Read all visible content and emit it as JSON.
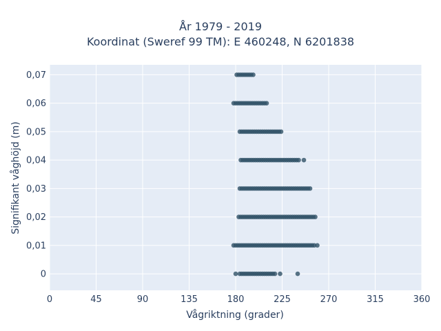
{
  "chart_data": {
    "type": "scatter",
    "title": "År 1979 - 2019",
    "subtitle": "Koordinat (Sweref 99 TM): E 460248, N 6201838",
    "xlabel": "Vågriktning (grader)",
    "ylabel": "Signifikant våghöjd (m)",
    "xlim": [
      0,
      360
    ],
    "ylim": [
      -0.0058,
      0.0735
    ],
    "x_ticks": [
      "0",
      "45",
      "90",
      "135",
      "180",
      "225",
      "270",
      "315",
      "360"
    ],
    "x_tick_values": [
      0,
      45,
      90,
      135,
      180,
      225,
      270,
      315,
      360
    ],
    "y_ticks": [
      "0",
      "0,01",
      "0,02",
      "0,03",
      "0,04",
      "0,05",
      "0,06",
      "0,07"
    ],
    "y_tick_values": [
      0,
      0.01,
      0.02,
      0.03,
      0.04,
      0.05,
      0.06,
      0.07
    ],
    "grid": true,
    "legend": "none",
    "colors": {
      "marker": "#2f5166",
      "plot_bg": "#e5ecf6",
      "grid": "#ffffff",
      "text": "#2a3f5f"
    },
    "series": [
      {
        "points": [
          {
            "x": 180,
            "y": 0
          },
          {
            "x": 184,
            "y": 0
          },
          {
            "x": 186,
            "y": 0
          },
          {
            "x": 188,
            "y": 0
          },
          {
            "x": 190,
            "y": 0
          },
          {
            "x": 192,
            "y": 0
          },
          {
            "x": 194,
            "y": 0
          },
          {
            "x": 196,
            "y": 0
          },
          {
            "x": 198,
            "y": 0
          },
          {
            "x": 200,
            "y": 0
          },
          {
            "x": 202,
            "y": 0
          },
          {
            "x": 204,
            "y": 0
          },
          {
            "x": 206,
            "y": 0
          },
          {
            "x": 208,
            "y": 0
          },
          {
            "x": 210,
            "y": 0
          },
          {
            "x": 212,
            "y": 0
          },
          {
            "x": 214,
            "y": 0
          },
          {
            "x": 216,
            "y": 0
          },
          {
            "x": 218,
            "y": 0
          },
          {
            "x": 223,
            "y": 0
          },
          {
            "x": 240,
            "y": 0
          },
          {
            "x": 178,
            "y": 0.01
          },
          {
            "x": 180,
            "y": 0.01
          },
          {
            "x": 182,
            "y": 0.01
          },
          {
            "x": 184,
            "y": 0.01
          },
          {
            "x": 186,
            "y": 0.01
          },
          {
            "x": 188,
            "y": 0.01
          },
          {
            "x": 190,
            "y": 0.01
          },
          {
            "x": 192,
            "y": 0.01
          },
          {
            "x": 194,
            "y": 0.01
          },
          {
            "x": 196,
            "y": 0.01
          },
          {
            "x": 198,
            "y": 0.01
          },
          {
            "x": 200,
            "y": 0.01
          },
          {
            "x": 202,
            "y": 0.01
          },
          {
            "x": 204,
            "y": 0.01
          },
          {
            "x": 206,
            "y": 0.01
          },
          {
            "x": 208,
            "y": 0.01
          },
          {
            "x": 210,
            "y": 0.01
          },
          {
            "x": 212,
            "y": 0.01
          },
          {
            "x": 214,
            "y": 0.01
          },
          {
            "x": 216,
            "y": 0.01
          },
          {
            "x": 218,
            "y": 0.01
          },
          {
            "x": 220,
            "y": 0.01
          },
          {
            "x": 222,
            "y": 0.01
          },
          {
            "x": 224,
            "y": 0.01
          },
          {
            "x": 226,
            "y": 0.01
          },
          {
            "x": 228,
            "y": 0.01
          },
          {
            "x": 230,
            "y": 0.01
          },
          {
            "x": 232,
            "y": 0.01
          },
          {
            "x": 234,
            "y": 0.01
          },
          {
            "x": 236,
            "y": 0.01
          },
          {
            "x": 238,
            "y": 0.01
          },
          {
            "x": 240,
            "y": 0.01
          },
          {
            "x": 242,
            "y": 0.01
          },
          {
            "x": 244,
            "y": 0.01
          },
          {
            "x": 246,
            "y": 0.01
          },
          {
            "x": 248,
            "y": 0.01
          },
          {
            "x": 250,
            "y": 0.01
          },
          {
            "x": 252,
            "y": 0.01
          },
          {
            "x": 254,
            "y": 0.01
          },
          {
            "x": 256,
            "y": 0.01
          },
          {
            "x": 259,
            "y": 0.01
          },
          {
            "x": 183,
            "y": 0.02
          },
          {
            "x": 185,
            "y": 0.02
          },
          {
            "x": 187,
            "y": 0.02
          },
          {
            "x": 189,
            "y": 0.02
          },
          {
            "x": 191,
            "y": 0.02
          },
          {
            "x": 193,
            "y": 0.02
          },
          {
            "x": 195,
            "y": 0.02
          },
          {
            "x": 197,
            "y": 0.02
          },
          {
            "x": 199,
            "y": 0.02
          },
          {
            "x": 201,
            "y": 0.02
          },
          {
            "x": 203,
            "y": 0.02
          },
          {
            "x": 205,
            "y": 0.02
          },
          {
            "x": 207,
            "y": 0.02
          },
          {
            "x": 209,
            "y": 0.02
          },
          {
            "x": 211,
            "y": 0.02
          },
          {
            "x": 213,
            "y": 0.02
          },
          {
            "x": 215,
            "y": 0.02
          },
          {
            "x": 217,
            "y": 0.02
          },
          {
            "x": 219,
            "y": 0.02
          },
          {
            "x": 221,
            "y": 0.02
          },
          {
            "x": 223,
            "y": 0.02
          },
          {
            "x": 225,
            "y": 0.02
          },
          {
            "x": 227,
            "y": 0.02
          },
          {
            "x": 229,
            "y": 0.02
          },
          {
            "x": 231,
            "y": 0.02
          },
          {
            "x": 233,
            "y": 0.02
          },
          {
            "x": 235,
            "y": 0.02
          },
          {
            "x": 237,
            "y": 0.02
          },
          {
            "x": 239,
            "y": 0.02
          },
          {
            "x": 241,
            "y": 0.02
          },
          {
            "x": 243,
            "y": 0.02
          },
          {
            "x": 245,
            "y": 0.02
          },
          {
            "x": 247,
            "y": 0.02
          },
          {
            "x": 249,
            "y": 0.02
          },
          {
            "x": 251,
            "y": 0.02
          },
          {
            "x": 253,
            "y": 0.02
          },
          {
            "x": 255,
            "y": 0.02
          },
          {
            "x": 257,
            "y": 0.02
          },
          {
            "x": 184,
            "y": 0.03
          },
          {
            "x": 186,
            "y": 0.03
          },
          {
            "x": 188,
            "y": 0.03
          },
          {
            "x": 190,
            "y": 0.03
          },
          {
            "x": 192,
            "y": 0.03
          },
          {
            "x": 194,
            "y": 0.03
          },
          {
            "x": 196,
            "y": 0.03
          },
          {
            "x": 198,
            "y": 0.03
          },
          {
            "x": 200,
            "y": 0.03
          },
          {
            "x": 202,
            "y": 0.03
          },
          {
            "x": 204,
            "y": 0.03
          },
          {
            "x": 206,
            "y": 0.03
          },
          {
            "x": 208,
            "y": 0.03
          },
          {
            "x": 210,
            "y": 0.03
          },
          {
            "x": 212,
            "y": 0.03
          },
          {
            "x": 214,
            "y": 0.03
          },
          {
            "x": 216,
            "y": 0.03
          },
          {
            "x": 218,
            "y": 0.03
          },
          {
            "x": 220,
            "y": 0.03
          },
          {
            "x": 222,
            "y": 0.03
          },
          {
            "x": 224,
            "y": 0.03
          },
          {
            "x": 226,
            "y": 0.03
          },
          {
            "x": 228,
            "y": 0.03
          },
          {
            "x": 230,
            "y": 0.03
          },
          {
            "x": 232,
            "y": 0.03
          },
          {
            "x": 234,
            "y": 0.03
          },
          {
            "x": 236,
            "y": 0.03
          },
          {
            "x": 238,
            "y": 0.03
          },
          {
            "x": 240,
            "y": 0.03
          },
          {
            "x": 242,
            "y": 0.03
          },
          {
            "x": 244,
            "y": 0.03
          },
          {
            "x": 246,
            "y": 0.03
          },
          {
            "x": 248,
            "y": 0.03
          },
          {
            "x": 250,
            "y": 0.03
          },
          {
            "x": 252,
            "y": 0.03
          },
          {
            "x": 185,
            "y": 0.04
          },
          {
            "x": 187,
            "y": 0.04
          },
          {
            "x": 189,
            "y": 0.04
          },
          {
            "x": 191,
            "y": 0.04
          },
          {
            "x": 193,
            "y": 0.04
          },
          {
            "x": 195,
            "y": 0.04
          },
          {
            "x": 197,
            "y": 0.04
          },
          {
            "x": 199,
            "y": 0.04
          },
          {
            "x": 201,
            "y": 0.04
          },
          {
            "x": 203,
            "y": 0.04
          },
          {
            "x": 205,
            "y": 0.04
          },
          {
            "x": 207,
            "y": 0.04
          },
          {
            "x": 209,
            "y": 0.04
          },
          {
            "x": 211,
            "y": 0.04
          },
          {
            "x": 213,
            "y": 0.04
          },
          {
            "x": 215,
            "y": 0.04
          },
          {
            "x": 217,
            "y": 0.04
          },
          {
            "x": 219,
            "y": 0.04
          },
          {
            "x": 221,
            "y": 0.04
          },
          {
            "x": 223,
            "y": 0.04
          },
          {
            "x": 225,
            "y": 0.04
          },
          {
            "x": 227,
            "y": 0.04
          },
          {
            "x": 229,
            "y": 0.04
          },
          {
            "x": 231,
            "y": 0.04
          },
          {
            "x": 233,
            "y": 0.04
          },
          {
            "x": 235,
            "y": 0.04
          },
          {
            "x": 237,
            "y": 0.04
          },
          {
            "x": 239,
            "y": 0.04
          },
          {
            "x": 241,
            "y": 0.04
          },
          {
            "x": 246,
            "y": 0.04
          },
          {
            "x": 184,
            "y": 0.05
          },
          {
            "x": 186,
            "y": 0.05
          },
          {
            "x": 188,
            "y": 0.05
          },
          {
            "x": 190,
            "y": 0.05
          },
          {
            "x": 192,
            "y": 0.05
          },
          {
            "x": 194,
            "y": 0.05
          },
          {
            "x": 196,
            "y": 0.05
          },
          {
            "x": 198,
            "y": 0.05
          },
          {
            "x": 200,
            "y": 0.05
          },
          {
            "x": 202,
            "y": 0.05
          },
          {
            "x": 204,
            "y": 0.05
          },
          {
            "x": 206,
            "y": 0.05
          },
          {
            "x": 208,
            "y": 0.05
          },
          {
            "x": 210,
            "y": 0.05
          },
          {
            "x": 212,
            "y": 0.05
          },
          {
            "x": 214,
            "y": 0.05
          },
          {
            "x": 216,
            "y": 0.05
          },
          {
            "x": 218,
            "y": 0.05
          },
          {
            "x": 220,
            "y": 0.05
          },
          {
            "x": 222,
            "y": 0.05
          },
          {
            "x": 224,
            "y": 0.05
          },
          {
            "x": 178,
            "y": 0.06
          },
          {
            "x": 180,
            "y": 0.06
          },
          {
            "x": 182,
            "y": 0.06
          },
          {
            "x": 184,
            "y": 0.06
          },
          {
            "x": 186,
            "y": 0.06
          },
          {
            "x": 188,
            "y": 0.06
          },
          {
            "x": 190,
            "y": 0.06
          },
          {
            "x": 192,
            "y": 0.06
          },
          {
            "x": 194,
            "y": 0.06
          },
          {
            "x": 196,
            "y": 0.06
          },
          {
            "x": 198,
            "y": 0.06
          },
          {
            "x": 200,
            "y": 0.06
          },
          {
            "x": 202,
            "y": 0.06
          },
          {
            "x": 204,
            "y": 0.06
          },
          {
            "x": 206,
            "y": 0.06
          },
          {
            "x": 208,
            "y": 0.06
          },
          {
            "x": 210,
            "y": 0.06
          },
          {
            "x": 181,
            "y": 0.07
          },
          {
            "x": 183,
            "y": 0.07
          },
          {
            "x": 185,
            "y": 0.07
          },
          {
            "x": 187,
            "y": 0.07
          },
          {
            "x": 189,
            "y": 0.07
          },
          {
            "x": 191,
            "y": 0.07
          },
          {
            "x": 193,
            "y": 0.07
          },
          {
            "x": 195,
            "y": 0.07
          },
          {
            "x": 197,
            "y": 0.07
          }
        ]
      }
    ]
  }
}
